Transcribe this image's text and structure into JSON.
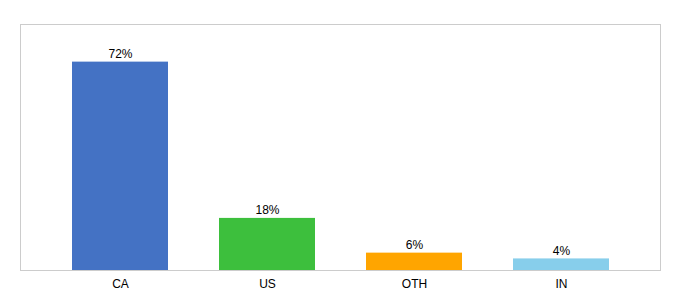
{
  "chart_data": {
    "type": "bar",
    "categories": [
      "CA",
      "US",
      "OTH",
      "IN"
    ],
    "values": [
      72,
      18,
      6,
      4
    ],
    "value_labels": [
      "72%",
      "18%",
      "6%",
      "4%"
    ],
    "colors": [
      "#4472C4",
      "#3DBF3D",
      "#FFA500",
      "#87CEEB"
    ],
    "ylim": [
      0,
      85
    ],
    "data_labels": true,
    "tick_labels": "x"
  }
}
